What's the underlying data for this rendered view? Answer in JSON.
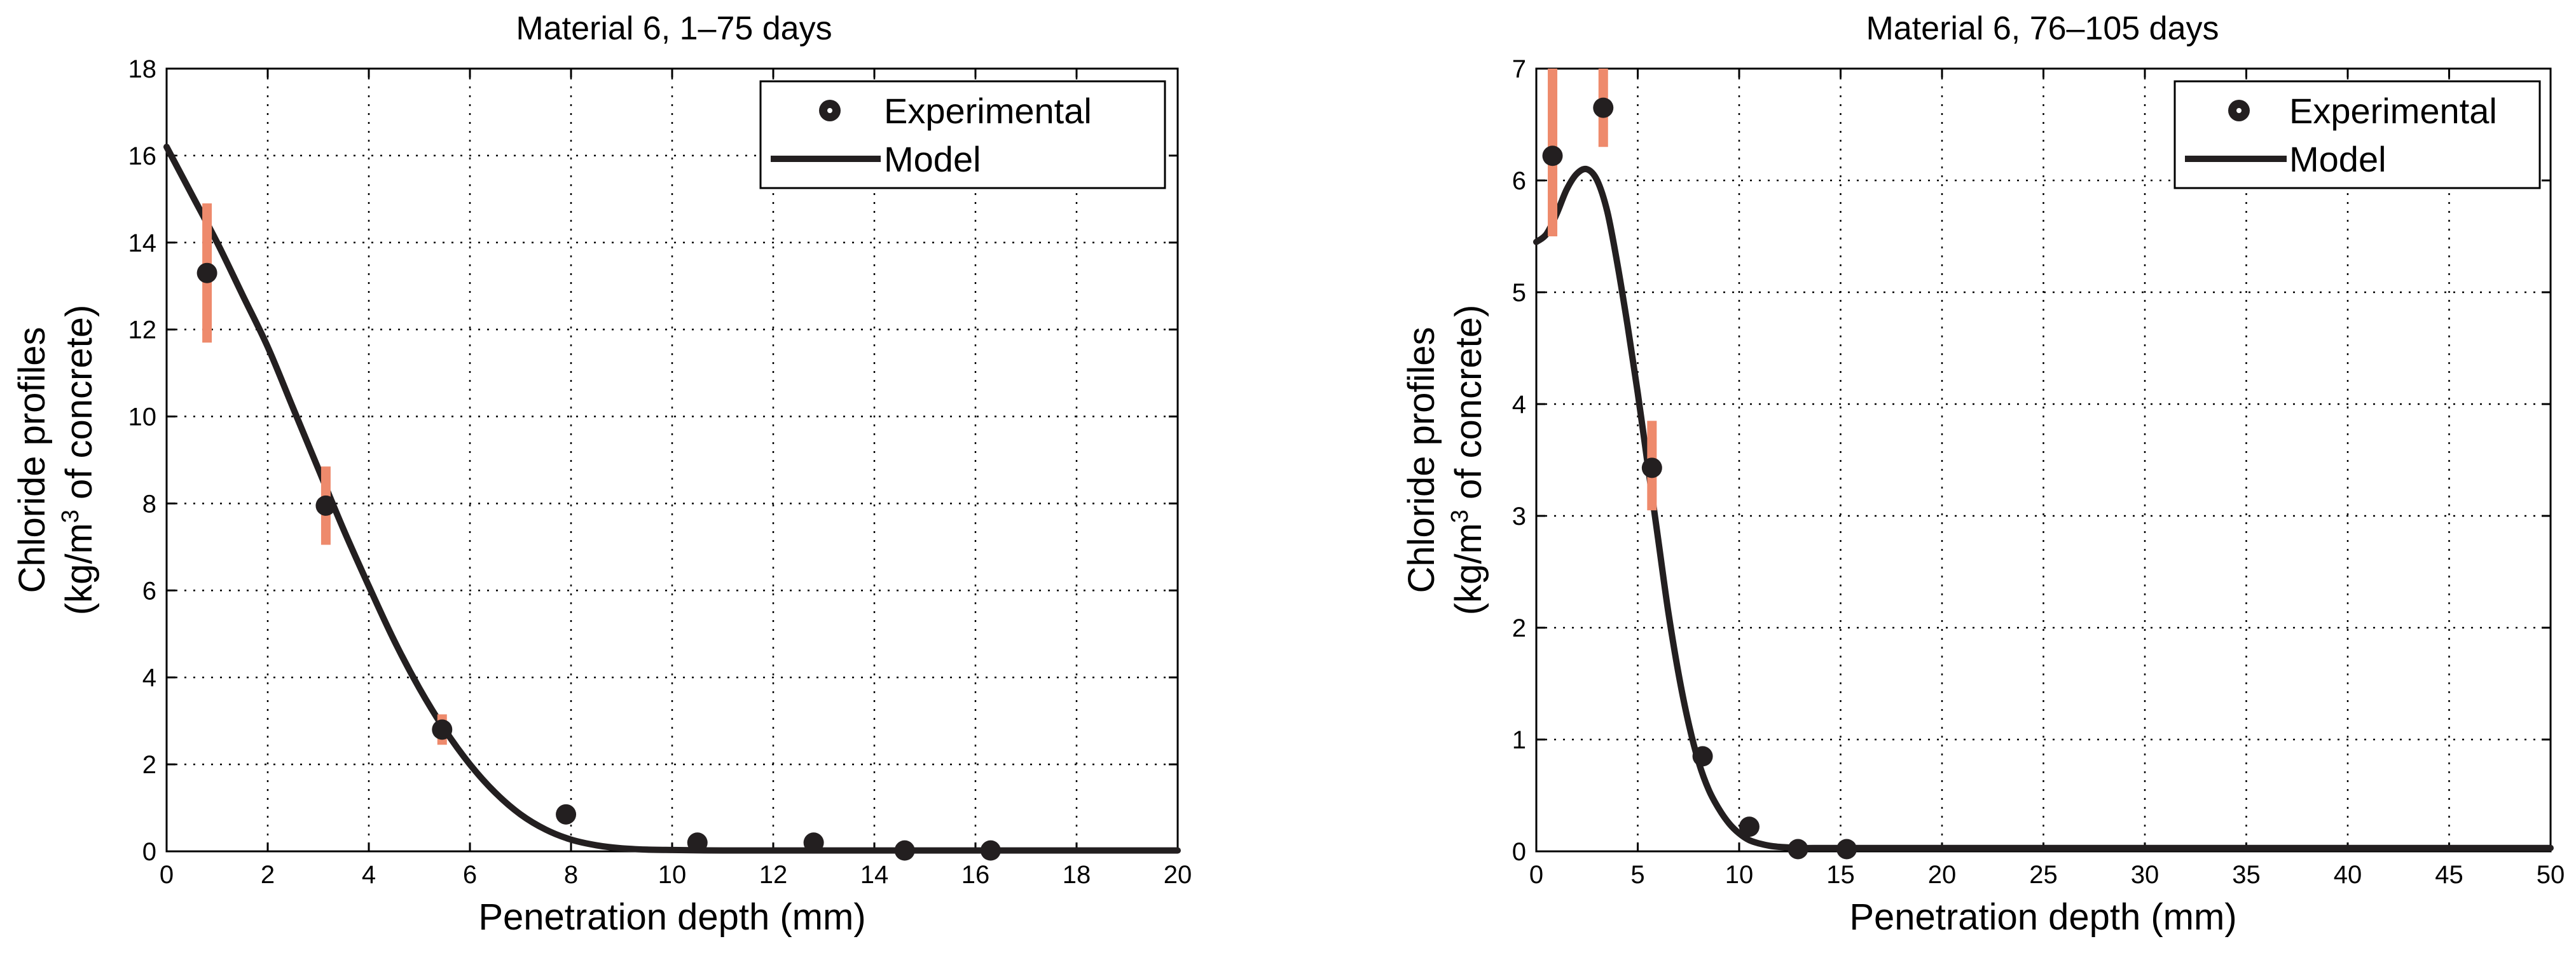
{
  "colors": {
    "errorbar": "#ee8a6c",
    "marker": "#231f20",
    "line": "#231f20"
  },
  "chart_data": [
    {
      "type": "line",
      "title": "Material 6, 1–75 days",
      "xlabel": "Penetration depth (mm)",
      "ylabel_line1": "Chloride profiles",
      "ylabel_line2_prefix": "(kg/m",
      "ylabel_line2_sup": "3",
      "ylabel_line2_suffix": " of concrete)",
      "xlim": [
        0,
        20
      ],
      "ylim": [
        0,
        18
      ],
      "xticks": [
        0,
        2,
        4,
        6,
        8,
        10,
        12,
        14,
        16,
        18,
        20
      ],
      "yticks": [
        0,
        2,
        4,
        6,
        8,
        10,
        12,
        14,
        16,
        18
      ],
      "grid": true,
      "legend_position": "top-right",
      "legend": {
        "experimental": "Experimental",
        "model": "Model"
      },
      "experimental": [
        {
          "x": 0.8,
          "y": 13.3,
          "err_low": 11.7,
          "err_high": 14.9
        },
        {
          "x": 3.15,
          "y": 7.95,
          "err_low": 7.05,
          "err_high": 8.85
        },
        {
          "x": 5.45,
          "y": 2.8,
          "err_low": 2.45,
          "err_high": 3.15
        },
        {
          "x": 7.9,
          "y": 0.85,
          "err_low": 0.7,
          "err_high": 1.0
        },
        {
          "x": 10.5,
          "y": 0.2
        },
        {
          "x": 12.8,
          "y": 0.2
        },
        {
          "x": 14.6,
          "y": 0.02
        },
        {
          "x": 16.3,
          "y": 0.02
        }
      ],
      "model": {
        "x": [
          0,
          0.5,
          1,
          1.5,
          2,
          2.5,
          3,
          3.5,
          4,
          4.5,
          5,
          5.5,
          6,
          6.5,
          7,
          7.5,
          8,
          8.5,
          9,
          9.5,
          10,
          11,
          12,
          14,
          16,
          18,
          20
        ],
        "y": [
          16.2,
          15.1,
          14.0,
          12.8,
          11.6,
          10.2,
          8.8,
          7.4,
          6.1,
          4.85,
          3.75,
          2.8,
          2.0,
          1.35,
          0.85,
          0.5,
          0.27,
          0.14,
          0.07,
          0.04,
          0.03,
          0.02,
          0.02,
          0.02,
          0.02,
          0.02,
          0.02
        ]
      }
    },
    {
      "type": "line",
      "title": "Material 6, 76–105 days",
      "xlabel": "Penetration depth (mm)",
      "ylabel_line1": "Chloride profiles",
      "ylabel_line2_prefix": "(kg/m",
      "ylabel_line2_sup": "3",
      "ylabel_line2_suffix": " of concrete)",
      "xlim": [
        0,
        50
      ],
      "ylim": [
        0,
        7
      ],
      "xticks": [
        0,
        5,
        10,
        15,
        20,
        25,
        30,
        35,
        40,
        45,
        50
      ],
      "yticks": [
        0,
        1,
        2,
        3,
        4,
        5,
        6,
        7
      ],
      "grid": true,
      "legend_position": "top-right",
      "legend": {
        "experimental": "Experimental",
        "model": "Model"
      },
      "experimental": [
        {
          "x": 0.8,
          "y": 6.22,
          "err_low": 5.5,
          "err_high": 7.0
        },
        {
          "x": 3.3,
          "y": 6.65,
          "err_low": 6.3,
          "err_high": 7.0
        },
        {
          "x": 5.7,
          "y": 3.43,
          "err_low": 3.05,
          "err_high": 3.85
        },
        {
          "x": 8.2,
          "y": 0.85,
          "err_low": 0.8,
          "err_high": 0.9
        },
        {
          "x": 10.5,
          "y": 0.22
        },
        {
          "x": 12.9,
          "y": 0.02
        },
        {
          "x": 15.3,
          "y": 0.02
        }
      ],
      "model": {
        "x": [
          0,
          0.5,
          1,
          1.5,
          2,
          2.5,
          3,
          3.5,
          4,
          4.5,
          5,
          5.5,
          6,
          6.5,
          7,
          7.5,
          8,
          8.5,
          9,
          9.5,
          10,
          10.5,
          11,
          11.5,
          12,
          13,
          14,
          15,
          20,
          30,
          40,
          50
        ],
        "y": [
          5.45,
          5.52,
          5.7,
          5.92,
          6.06,
          6.1,
          6.0,
          5.72,
          5.25,
          4.7,
          4.1,
          3.45,
          2.8,
          2.15,
          1.6,
          1.15,
          0.8,
          0.55,
          0.38,
          0.25,
          0.16,
          0.1,
          0.07,
          0.05,
          0.04,
          0.03,
          0.03,
          0.03,
          0.03,
          0.03,
          0.03,
          0.03
        ]
      }
    }
  ]
}
